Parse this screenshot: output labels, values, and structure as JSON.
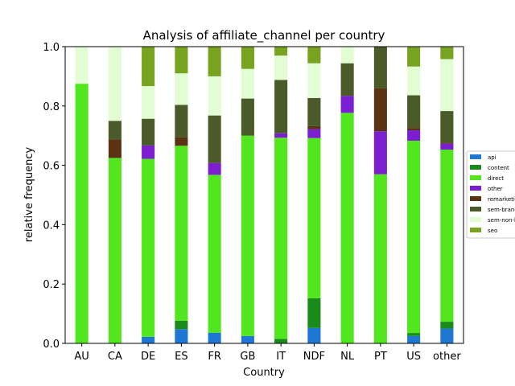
{
  "chart_data": {
    "type": "bar",
    "stacked": true,
    "title": "Analysis of affiliate_channel per country",
    "xlabel": "Country",
    "ylabel": "relative frequency",
    "ylim": [
      0,
      1
    ],
    "yticks": [
      "0.0",
      "0.2",
      "0.4",
      "0.6",
      "0.8",
      "1.0"
    ],
    "categories": [
      "AU",
      "CA",
      "DE",
      "ES",
      "FR",
      "GB",
      "IT",
      "NDF",
      "NL",
      "PT",
      "US",
      "other"
    ],
    "legend_position": "right",
    "series": [
      {
        "name": "api",
        "color": "#1f77d4",
        "values": [
          0,
          0,
          0.022,
          0.048,
          0.036,
          0.025,
          0,
          0.052,
          0,
          0,
          0.025,
          0.05
        ]
      },
      {
        "name": "content",
        "color": "#1a8a1a",
        "values": [
          0,
          0,
          0,
          0.028,
          0,
          0,
          0.015,
          0.1,
          0,
          0,
          0.01,
          0.023
        ]
      },
      {
        "name": "direct",
        "color": "#52e61e",
        "values": [
          0.875,
          0.625,
          0.6,
          0.59,
          0.532,
          0.675,
          0.678,
          0.54,
          0.777,
          0.57,
          0.648,
          0.58
        ]
      },
      {
        "name": "other",
        "color": "#7a1ecf",
        "values": [
          0,
          0,
          0.045,
          0,
          0.04,
          0,
          0.015,
          0.03,
          0.057,
          0.145,
          0.035,
          0.02
        ]
      },
      {
        "name": "remarketing",
        "color": "#5c3312",
        "values": [
          0,
          0.063,
          0,
          0.028,
          0,
          0,
          0,
          0.01,
          0,
          0.145,
          0.008,
          0.004
        ]
      },
      {
        "name": "sem-brand",
        "color": "#4a5a28",
        "values": [
          0,
          0.062,
          0.09,
          0.11,
          0.16,
          0.125,
          0.18,
          0.095,
          0.11,
          0.14,
          0.11,
          0.106
        ]
      },
      {
        "name": "sem-non-brand",
        "color": "#e2fcd4",
        "values": [
          0.125,
          0.25,
          0.11,
          0.106,
          0.132,
          0.1,
          0.082,
          0.117,
          0.056,
          0,
          0.097,
          0.175
        ]
      },
      {
        "name": "seo",
        "color": "#77a320",
        "values": [
          0,
          0,
          0.133,
          0.09,
          0.1,
          0.075,
          0.03,
          0.056,
          0,
          0,
          0.067,
          0.042
        ]
      }
    ]
  }
}
